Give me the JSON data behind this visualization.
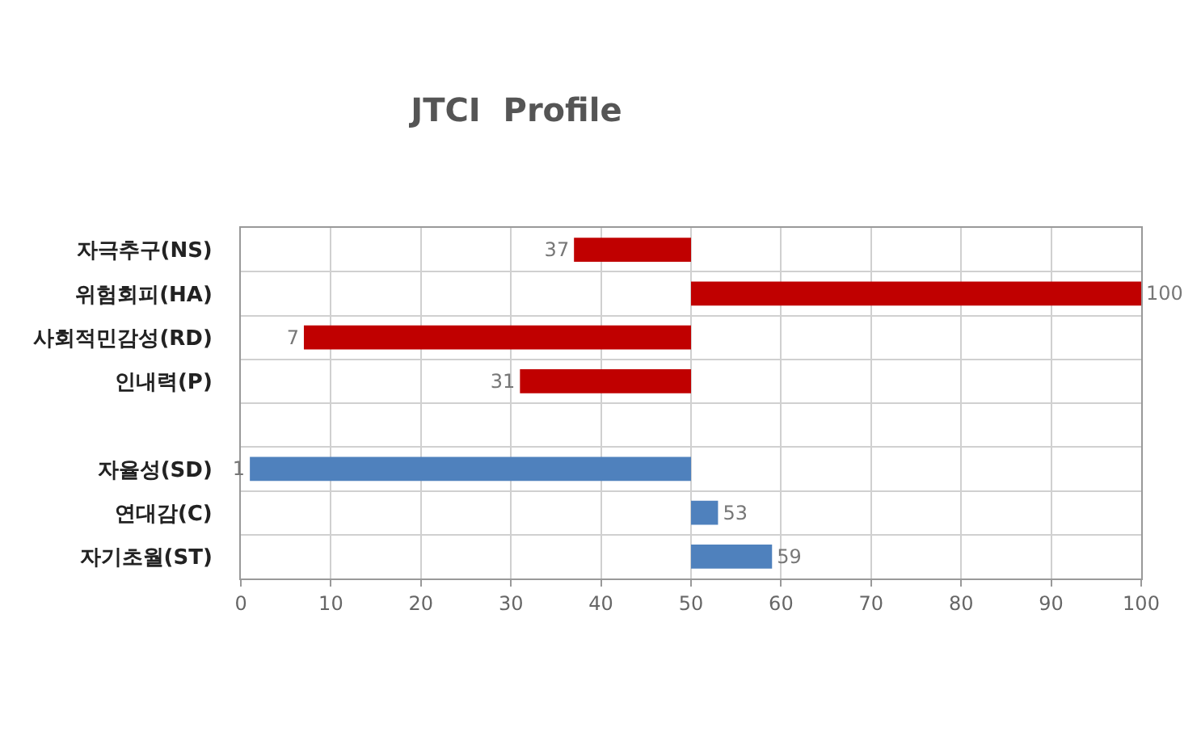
{
  "chart_data": {
    "type": "bar",
    "title": "JTCI  Profile",
    "orientation": "horizontal",
    "categories": [
      "자극추구(NS)",
      "위험회피(HA)",
      "사회적민감성(RD)",
      "인내력(P)",
      null,
      "자율성(SD)",
      "연대감(C)",
      "자기초월(ST)"
    ],
    "base": [
      50,
      50,
      50,
      50,
      null,
      50,
      50,
      50
    ],
    "values": [
      -13,
      50,
      -43,
      -19,
      null,
      -49,
      3,
      9
    ],
    "value_labels": [
      "37",
      "100",
      "7",
      "31",
      null,
      "1",
      "53",
      "59"
    ],
    "colors": [
      "#c00000",
      "#c00000",
      "#c00000",
      "#c00000",
      null,
      "#4f81bd",
      "#4f81bd",
      "#4f81bd"
    ],
    "xlim": [
      0,
      100
    ],
    "xticks": [
      0,
      10,
      20,
      30,
      40,
      50,
      60,
      70,
      80,
      90,
      100
    ],
    "grid": true,
    "legend": false
  }
}
